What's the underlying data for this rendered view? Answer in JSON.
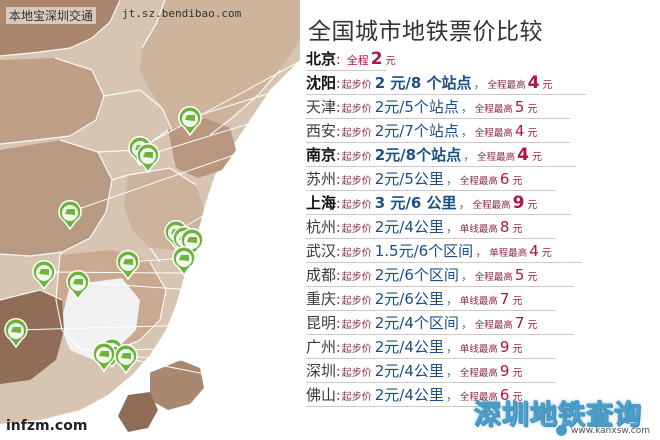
{
  "header": {
    "source_label": "本地宝深圳交通",
    "source_url": "jt.sz.bendibao.com",
    "title": "全国城市地铁票价比较"
  },
  "rows": [
    {
      "city": "北京",
      "sep": ":",
      "full_label": "全程",
      "full_value": "2",
      "yuan": "元"
    },
    {
      "city": "沈阳",
      "sep": ":",
      "start_label": "起步价",
      "start_price": "2 元/8 个站点",
      "comma": "，",
      "max_label": "全程最高",
      "max_value": "4",
      "yuan": "元"
    },
    {
      "city": "天津",
      "sep": ":",
      "start_label": "起步价",
      "start_price": "2元/5个站点",
      "comma": "，",
      "max_label": "全程最高",
      "max_value": "5",
      "yuan": "元"
    },
    {
      "city": "西安",
      "sep": ":",
      "start_label": "起步价",
      "start_price": "2元/7个站点",
      "comma": "，",
      "max_label": "全程最高",
      "max_value": "4",
      "yuan": "元"
    },
    {
      "city": "南京",
      "sep": ":",
      "start_label": "起步价",
      "start_price": "2元/8个站点",
      "comma": "，",
      "max_label": "全程最高",
      "max_value": "4",
      "yuan": "元"
    },
    {
      "city": "苏州",
      "sep": ":",
      "start_label": "起步价",
      "start_price": "2元/5公里",
      "comma": "，",
      "max_label": "全程最高",
      "max_value": "6",
      "yuan": "元"
    },
    {
      "city": "上海",
      "sep": ":",
      "start_label": "起步价",
      "start_price": "3 元/6 公里",
      "comma": "，",
      "max_label": "全程最高",
      "max_value": "9",
      "yuan": "元"
    },
    {
      "city": "杭州",
      "sep": ":",
      "start_label": "起步价",
      "start_price": "2元/4公里",
      "comma": "，",
      "max_label": "单线最高",
      "max_value": "8",
      "yuan": "元"
    },
    {
      "city": "武汉",
      "sep": ":",
      "start_label": "起步价",
      "start_price": "1.5元/6个区间",
      "comma": "，",
      "max_label": "单程最高",
      "max_value": "4",
      "yuan": "元"
    },
    {
      "city": "成都",
      "sep": ":",
      "start_label": "起步价",
      "start_price": "2元/6个区间",
      "comma": "，",
      "max_label": "全程最高",
      "max_value": "5",
      "yuan": "元"
    },
    {
      "city": "重庆",
      "sep": ":",
      "start_label": "起步价",
      "start_price": "2元/6公里",
      "comma": "，",
      "max_label": "单线最高",
      "max_value": "7",
      "yuan": "元"
    },
    {
      "city": "昆明",
      "sep": ":",
      "start_label": "起步价",
      "start_price": "2元/4个区间",
      "comma": "，",
      "max_label": "全程最高",
      "max_value": "7",
      "yuan": "元"
    },
    {
      "city": "广州",
      "sep": ":",
      "start_label": "起步价",
      "start_price": "2元/4公里",
      "comma": "，",
      "max_label": "单线最高",
      "max_value": "9",
      "yuan": "元"
    },
    {
      "city": "深圳",
      "sep": ":",
      "start_label": "起步价",
      "start_price": "2元/4公里",
      "comma": "，",
      "max_label": "全程最高",
      "max_value": "9",
      "yuan": "元"
    },
    {
      "city": "佛山",
      "sep": ":",
      "start_label": "起步价",
      "start_price": "2元/4公里",
      "comma": "，",
      "max_label": "全程最高",
      "max_value": "6",
      "yuan": "元"
    }
  ],
  "watermarks": {
    "left": "infzm.com",
    "right_main": "深圳地铁查询",
    "right_url": "www.kanxsw.com"
  },
  "colors": {
    "price_blue": "#1c4f86",
    "max_red": "#b01445",
    "label_purple": "#8e2a4e",
    "map_light": "#d9c7b4",
    "map_mid": "#c8ab92",
    "map_dark": "#9d7b62",
    "map_white_region": "#f2f2f2",
    "marker_green": "#6fb23e"
  },
  "icons": {
    "marker": "subway-train-pin-icon"
  }
}
